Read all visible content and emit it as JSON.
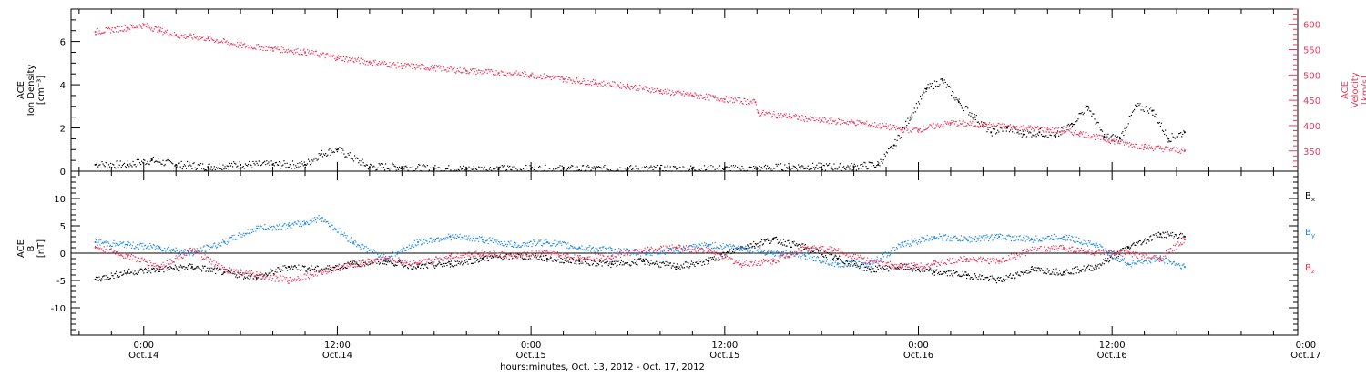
{
  "chart_data": [
    {
      "type": "scatter",
      "panel": "top",
      "ylabel_left": [
        "ACE",
        "Ion Density",
        "[cm⁻³]"
      ],
      "ylabel_right": [
        "ACE",
        "Velocity",
        "[km/s]"
      ],
      "ylim_left": [
        0,
        7.5
      ],
      "ylim_right": [
        310,
        630
      ],
      "yticks_left": [
        0,
        2,
        4,
        6
      ],
      "yticks_right": [
        350,
        400,
        450,
        500,
        550,
        600
      ],
      "series": [
        {
          "name": "Ion Density",
          "axis": "left",
          "color": "#000000",
          "x": [
            -3.0,
            -1.0,
            0.5,
            2.0,
            4.0,
            6.0,
            8.0,
            10.0,
            11.0,
            12.0,
            14.0,
            16.0,
            18.0,
            20.0,
            22.0,
            24.0,
            26.0,
            28.0,
            30.0,
            32.0,
            34.0,
            36.0,
            38.0,
            40.0,
            42.0,
            44.0,
            45.5,
            46.5,
            47.5,
            48.5,
            49.5,
            50.5,
            51.5,
            52.5,
            53.5,
            54.5,
            55.5,
            56.5,
            57.5,
            58.5,
            59.5,
            60.5,
            61.5,
            62.5,
            63.5,
            64.5
          ],
          "y": [
            0.3,
            0.3,
            0.5,
            0.3,
            0.2,
            0.3,
            0.3,
            0.3,
            0.8,
            1.0,
            0.2,
            0.2,
            0.1,
            0.1,
            0.1,
            0.1,
            0.1,
            0.1,
            0.1,
            0.1,
            0.1,
            0.1,
            0.1,
            0.2,
            0.2,
            0.2,
            0.3,
            1.2,
            2.5,
            3.8,
            4.2,
            3.2,
            2.5,
            1.8,
            2.0,
            1.7,
            1.8,
            1.6,
            2.2,
            3.0,
            1.6,
            1.5,
            3.0,
            2.8,
            1.5,
            1.8
          ]
        },
        {
          "name": "Velocity",
          "axis": "right",
          "color": "#e8395c",
          "x": [
            -3.0,
            -1.0,
            0.0,
            1.0,
            2.0,
            4.0,
            6.0,
            8.0,
            10.0,
            12.0,
            14.0,
            16.0,
            18.0,
            20.0,
            22.0,
            24.0,
            26.0,
            28.0,
            30.0,
            32.0,
            34.0,
            36.0,
            37.9,
            38.1,
            40.0,
            42.0,
            44.0,
            46.0,
            47.0,
            48.0,
            50.0,
            52.0,
            54.0,
            56.0,
            58.0,
            60.0,
            62.0,
            64.5
          ],
          "y": [
            585,
            593,
            598,
            588,
            578,
            572,
            558,
            552,
            545,
            534,
            525,
            518,
            514,
            508,
            504,
            500,
            492,
            484,
            478,
            468,
            460,
            452,
            446,
            425,
            418,
            410,
            406,
            398,
            392,
            392,
            405,
            401,
            397,
            392,
            385,
            370,
            358,
            350
          ]
        }
      ]
    },
    {
      "type": "scatter",
      "panel": "bottom",
      "ylabel": [
        "ACE",
        "B",
        "[nT]"
      ],
      "ylim": [
        -15,
        15
      ],
      "yticks": [
        -10,
        -5,
        0,
        5,
        10
      ],
      "zero_line": true,
      "series": [
        {
          "name": "Bx",
          "label_main": "B",
          "label_sub": "x",
          "color": "#000000",
          "x": [
            -3.0,
            -1.0,
            1.0,
            3.0,
            5.0,
            7.0,
            9.0,
            11.0,
            13.0,
            15.0,
            17.0,
            19.0,
            21.0,
            23.0,
            25.0,
            27.0,
            29.0,
            31.0,
            33.0,
            35.0,
            37.0,
            39.0,
            41.0,
            43.0,
            45.0,
            47.0,
            49.0,
            51.0,
            53.0,
            55.0,
            57.0,
            59.0,
            61.0,
            63.0,
            64.5
          ],
          "y": [
            -4.8,
            -3.5,
            -3.0,
            -2.5,
            -3.5,
            -4.5,
            -2.5,
            -3.0,
            -2.0,
            -1.5,
            -2.5,
            -2.0,
            -1.0,
            -0.5,
            -1.0,
            -1.5,
            -2.0,
            -1.5,
            -2.5,
            -1.5,
            1.0,
            2.5,
            1.0,
            -1.0,
            -3.0,
            -2.5,
            -3.5,
            -4.0,
            -5.0,
            -3.0,
            -3.5,
            -2.5,
            1.0,
            3.5,
            3.0
          ]
        },
        {
          "name": "By",
          "label_main": "B",
          "label_sub": "y",
          "color": "#1e88e5",
          "x": [
            -3.0,
            -1.0,
            1.0,
            3.0,
            5.0,
            7.0,
            9.0,
            10.0,
            11.0,
            13.0,
            15.0,
            17.0,
            19.0,
            21.0,
            23.0,
            25.0,
            27.0,
            29.0,
            31.0,
            33.0,
            35.0,
            37.0,
            39.0,
            41.0,
            43.0,
            45.0,
            47.0,
            49.0,
            51.0,
            53.0,
            55.0,
            57.0,
            59.0,
            61.0,
            63.0,
            64.5
          ],
          "y": [
            2.0,
            1.5,
            1.0,
            0.0,
            2.0,
            4.5,
            5.0,
            5.5,
            6.5,
            2.0,
            -1.0,
            2.0,
            3.0,
            2.5,
            1.5,
            2.0,
            1.0,
            0.5,
            0.0,
            0.5,
            1.5,
            1.0,
            0.0,
            -0.5,
            -2.0,
            -2.0,
            1.5,
            3.0,
            2.5,
            3.0,
            2.5,
            3.0,
            1.5,
            -2.0,
            -1.0,
            -2.5
          ]
        },
        {
          "name": "Bz",
          "label_main": "B",
          "label_sub": "z",
          "color": "#e8395c",
          "x": [
            -3.0,
            -1.0,
            1.0,
            3.0,
            5.0,
            7.0,
            9.0,
            11.0,
            13.0,
            15.0,
            17.0,
            19.0,
            21.0,
            23.0,
            25.0,
            27.0,
            29.0,
            31.0,
            33.0,
            35.0,
            37.0,
            39.0,
            41.0,
            43.0,
            45.0,
            47.0,
            49.0,
            51.0,
            53.0,
            55.0,
            57.0,
            59.0,
            61.0,
            63.0,
            64.5
          ],
          "y": [
            1.0,
            -0.5,
            -2.5,
            0.5,
            -3.0,
            -4.0,
            -5.0,
            -3.5,
            -2.0,
            -1.0,
            -2.0,
            -0.5,
            0.0,
            -0.5,
            0.0,
            -1.0,
            -0.5,
            0.5,
            1.0,
            0.5,
            -2.0,
            -1.5,
            1.0,
            0.5,
            -1.5,
            -2.5,
            -2.0,
            -1.0,
            -1.5,
            0.5,
            1.0,
            0.0,
            0.0,
            -1.0,
            2.5
          ]
        }
      ]
    }
  ],
  "x_axis": {
    "xlim": [
      -4.5,
      71.5
    ],
    "ticks": [
      {
        "x": 0,
        "time": "0:00",
        "date": "Oct.14"
      },
      {
        "x": 12,
        "time": "12:00",
        "date": "Oct.14"
      },
      {
        "x": 24,
        "time": "0:00",
        "date": "Oct.15"
      },
      {
        "x": 36,
        "time": "12:00",
        "date": "Oct.15"
      },
      {
        "x": 48,
        "time": "0:00",
        "date": "Oct.16"
      },
      {
        "x": 60,
        "time": "12:00",
        "date": "Oct.16"
      },
      {
        "x": 72,
        "time": "0:00",
        "date": "Oct.17"
      }
    ],
    "xlabel": "hours:minutes, Oct. 13, 2012 - Oct. 17, 2012"
  }
}
